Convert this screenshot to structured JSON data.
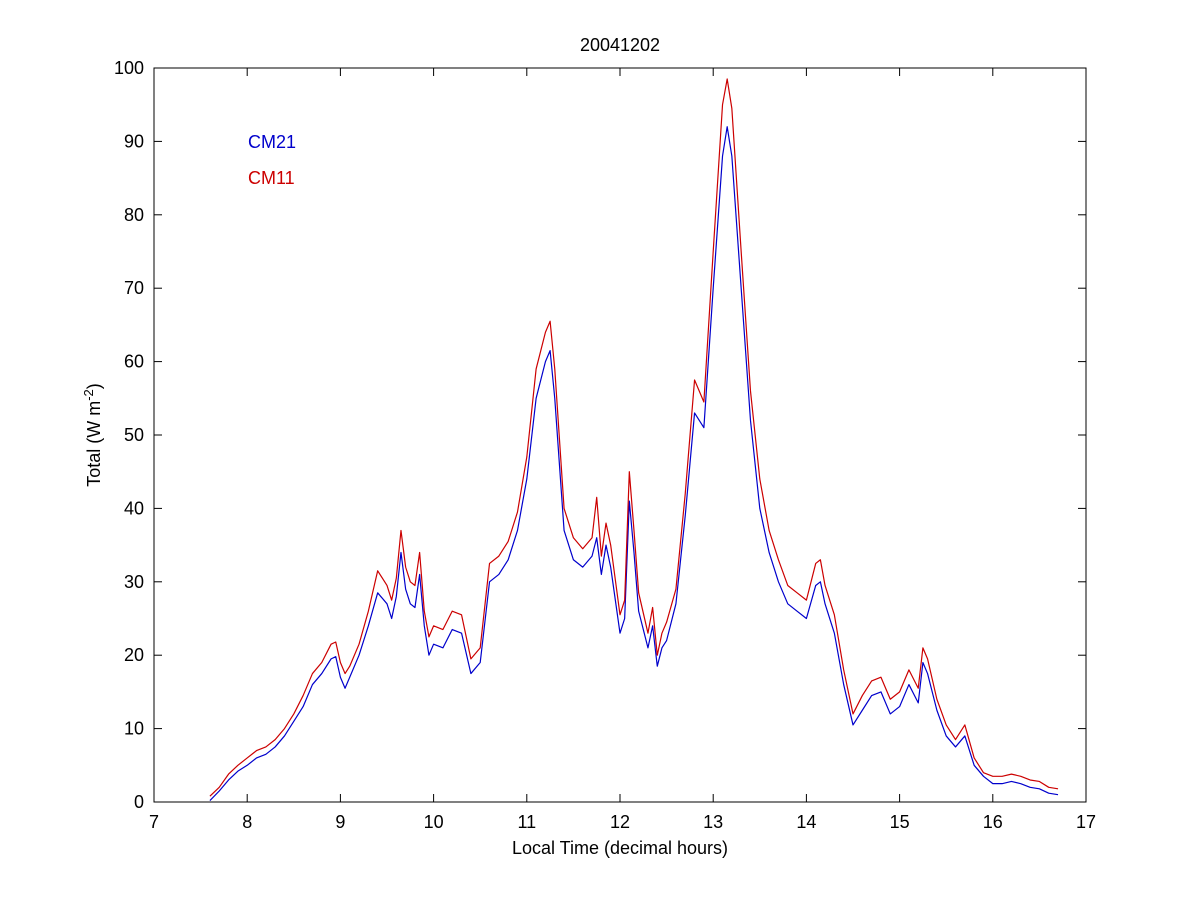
{
  "chart_data": {
    "type": "line",
    "title": "20041202",
    "xlabel": "Local Time (decimal hours)",
    "ylabel": "Total (W m",
    "ylabel_sup": "-2",
    "ylabel_close": ")",
    "xlim": [
      7,
      17
    ],
    "ylim": [
      0,
      100
    ],
    "xticks": [
      7,
      8,
      9,
      10,
      11,
      12,
      13,
      14,
      15,
      16,
      17
    ],
    "yticks": [
      0,
      10,
      20,
      30,
      40,
      50,
      60,
      70,
      80,
      90,
      100
    ],
    "grid": false,
    "legend_position": "top-left",
    "series": [
      {
        "name": "CM21",
        "color": "#0000cc",
        "x": [
          7.6,
          7.7,
          7.8,
          7.9,
          8.0,
          8.1,
          8.2,
          8.3,
          8.4,
          8.5,
          8.6,
          8.7,
          8.8,
          8.9,
          8.95,
          9.0,
          9.05,
          9.1,
          9.2,
          9.3,
          9.4,
          9.5,
          9.55,
          9.6,
          9.65,
          9.7,
          9.75,
          9.8,
          9.85,
          9.9,
          9.95,
          10.0,
          10.1,
          10.2,
          10.3,
          10.4,
          10.5,
          10.6,
          10.7,
          10.8,
          10.9,
          11.0,
          11.1,
          11.2,
          11.25,
          11.3,
          11.4,
          11.5,
          11.6,
          11.7,
          11.75,
          11.8,
          11.85,
          11.9,
          12.0,
          12.05,
          12.1,
          12.15,
          12.2,
          12.3,
          12.35,
          12.4,
          12.45,
          12.5,
          12.6,
          12.7,
          12.8,
          12.9,
          13.0,
          13.1,
          13.15,
          13.2,
          13.3,
          13.4,
          13.5,
          13.6,
          13.7,
          13.8,
          13.9,
          14.0,
          14.1,
          14.15,
          14.2,
          14.3,
          14.4,
          14.5,
          14.6,
          14.7,
          14.8,
          14.9,
          15.0,
          15.1,
          15.2,
          15.25,
          15.3,
          15.4,
          15.5,
          15.6,
          15.7,
          15.8,
          15.9,
          16.0,
          16.1,
          16.2,
          16.3,
          16.4,
          16.5,
          16.6,
          16.7
        ],
        "y": [
          0.2,
          1.5,
          3.0,
          4.2,
          5.0,
          6.0,
          6.5,
          7.5,
          9.0,
          11.0,
          13.0,
          16.0,
          17.5,
          19.5,
          19.8,
          17.0,
          15.5,
          17.0,
          20.0,
          24.0,
          28.5,
          27.0,
          25.0,
          28.0,
          34.0,
          29.0,
          27.0,
          26.5,
          31.0,
          24.0,
          20.0,
          21.5,
          21.0,
          23.5,
          23.0,
          17.5,
          19.0,
          30.0,
          31.0,
          33.0,
          37.0,
          44.0,
          55.0,
          60.0,
          61.5,
          55.0,
          37.0,
          33.0,
          32.0,
          33.5,
          36.0,
          31.0,
          35.0,
          32.0,
          23.0,
          25.0,
          41.0,
          34.0,
          26.0,
          21.0,
          24.0,
          18.5,
          21.0,
          22.0,
          27.0,
          39.0,
          53.0,
          51.0,
          70.0,
          88.0,
          92.0,
          88.0,
          70.0,
          52.0,
          40.0,
          34.0,
          30.0,
          27.0,
          26.0,
          25.0,
          29.5,
          30.0,
          27.0,
          23.0,
          16.0,
          10.5,
          12.5,
          14.5,
          15.0,
          12.0,
          13.0,
          16.0,
          13.5,
          19.0,
          17.5,
          12.5,
          9.0,
          7.5,
          9.0,
          5.0,
          3.5,
          2.5,
          2.5,
          2.8,
          2.5,
          2.0,
          1.8,
          1.2,
          1.0
        ]
      },
      {
        "name": "CM11",
        "color": "#cc0000",
        "x": [
          7.6,
          7.7,
          7.8,
          7.9,
          8.0,
          8.1,
          8.2,
          8.3,
          8.4,
          8.5,
          8.6,
          8.7,
          8.8,
          8.9,
          8.95,
          9.0,
          9.05,
          9.1,
          9.2,
          9.3,
          9.4,
          9.5,
          9.55,
          9.6,
          9.65,
          9.7,
          9.75,
          9.8,
          9.85,
          9.9,
          9.95,
          10.0,
          10.1,
          10.2,
          10.3,
          10.4,
          10.5,
          10.6,
          10.7,
          10.8,
          10.9,
          11.0,
          11.1,
          11.2,
          11.25,
          11.3,
          11.4,
          11.5,
          11.6,
          11.7,
          11.75,
          11.8,
          11.85,
          11.9,
          12.0,
          12.05,
          12.1,
          12.15,
          12.2,
          12.3,
          12.35,
          12.4,
          12.45,
          12.5,
          12.6,
          12.7,
          12.8,
          12.9,
          13.0,
          13.1,
          13.15,
          13.2,
          13.3,
          13.4,
          13.5,
          13.6,
          13.7,
          13.8,
          13.9,
          14.0,
          14.1,
          14.15,
          14.2,
          14.3,
          14.4,
          14.5,
          14.6,
          14.7,
          14.8,
          14.9,
          15.0,
          15.1,
          15.2,
          15.25,
          15.3,
          15.4,
          15.5,
          15.6,
          15.7,
          15.8,
          15.9,
          16.0,
          16.1,
          16.2,
          16.3,
          16.4,
          16.5,
          16.6,
          16.7
        ],
        "y": [
          0.8,
          2.0,
          3.8,
          5.0,
          6.0,
          7.0,
          7.5,
          8.5,
          10.0,
          12.0,
          14.5,
          17.5,
          19.0,
          21.5,
          21.8,
          19.0,
          17.5,
          18.5,
          21.5,
          26.0,
          31.5,
          29.5,
          27.5,
          30.5,
          37.0,
          32.0,
          30.0,
          29.5,
          34.0,
          26.0,
          22.5,
          24.0,
          23.5,
          26.0,
          25.5,
          19.5,
          21.0,
          32.5,
          33.5,
          35.5,
          39.5,
          47.0,
          59.0,
          64.0,
          65.5,
          59.0,
          40.0,
          36.0,
          34.5,
          36.0,
          41.5,
          33.5,
          38.0,
          35.0,
          25.5,
          27.5,
          45.0,
          37.0,
          28.5,
          23.0,
          26.5,
          20.0,
          23.0,
          24.5,
          29.0,
          42.0,
          57.5,
          54.5,
          75.0,
          95.0,
          98.5,
          94.5,
          75.0,
          56.0,
          44.0,
          37.0,
          33.0,
          29.5,
          28.5,
          27.5,
          32.5,
          33.0,
          29.5,
          25.5,
          18.0,
          12.0,
          14.5,
          16.5,
          17.0,
          14.0,
          15.0,
          18.0,
          15.5,
          21.0,
          19.5,
          14.0,
          10.5,
          8.5,
          10.5,
          6.0,
          4.0,
          3.5,
          3.5,
          3.8,
          3.5,
          3.0,
          2.8,
          2.0,
          1.8
        ]
      }
    ]
  }
}
